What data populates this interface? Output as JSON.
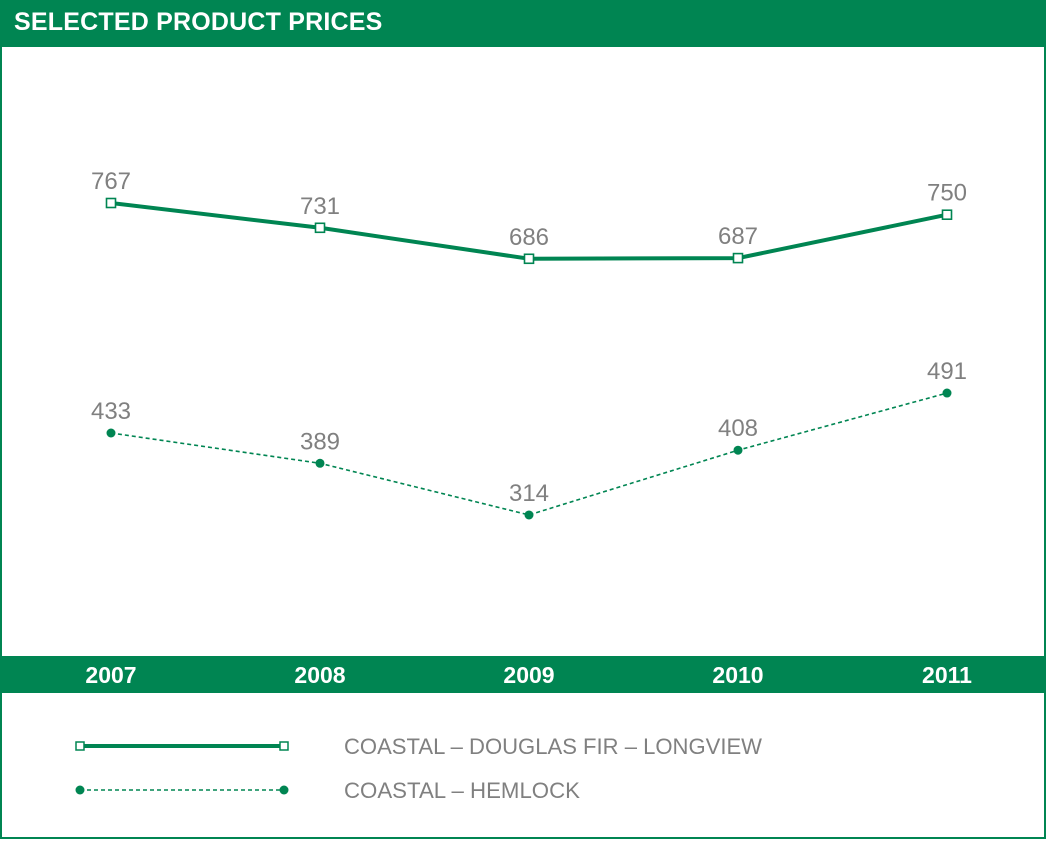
{
  "chart_data": {
    "type": "line",
    "title": "SELECTED PRODUCT PRICES",
    "categories": [
      "2007",
      "2008",
      "2009",
      "2010",
      "2011"
    ],
    "series": [
      {
        "name": "COASTAL – DOUGLAS FIR – LONGVIEW",
        "values": [
          767,
          731,
          686,
          687,
          750
        ],
        "line_style": "solid",
        "marker": "open-square"
      },
      {
        "name": "COASTAL – HEMLOCK",
        "values": [
          433,
          389,
          314,
          408,
          491
        ],
        "line_style": "dashed",
        "marker": "filled-circle"
      }
    ],
    "data_labels": true,
    "grid": false,
    "legend_placement": "bottom",
    "colors": {
      "accent": "#008552",
      "label": "#808080",
      "background": "#ffffff"
    }
  }
}
